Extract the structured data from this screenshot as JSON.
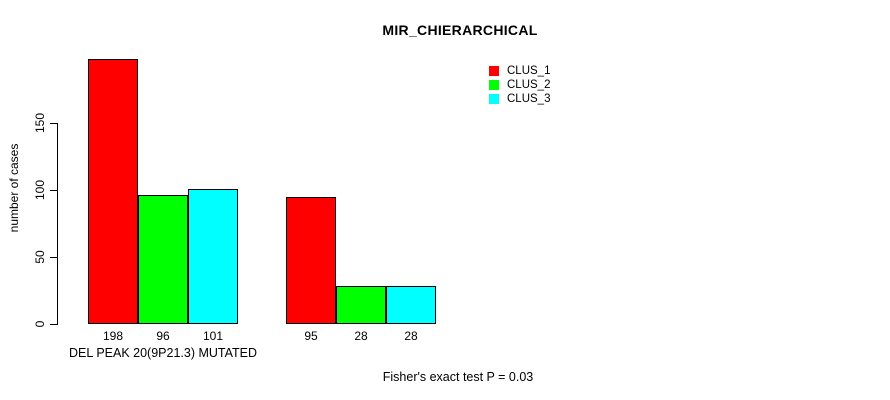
{
  "chart_data": {
    "type": "bar",
    "title": "MIR_CHIERARCHICAL",
    "ylabel": "number of cases",
    "xlabel": "DEL PEAK 20(9P21.3) MUTATED",
    "annotation": "Fisher's exact test P = 0.03",
    "yticks": [
      0,
      50,
      100,
      150
    ],
    "ylim": [
      0,
      210
    ],
    "grid": false,
    "legend_position": "top-right",
    "groups": [
      "DEL PEAK 20(9P21.3) MUTATED",
      "second group (unlabeled)"
    ],
    "series": [
      {
        "name": "CLUS_1",
        "color": "#ff0000",
        "values": [
          198,
          95
        ]
      },
      {
        "name": "CLUS_2",
        "color": "#00ff00",
        "values": [
          96,
          28
        ]
      },
      {
        "name": "CLUS_3",
        "color": "#00ffff",
        "values": [
          101,
          28
        ]
      }
    ],
    "bar_value_labels": [
      [
        198,
        96,
        101
      ],
      [
        95,
        28,
        28
      ]
    ]
  },
  "colors": {
    "background": "#ffffff",
    "axis": "#000000",
    "text": "#000000",
    "bar_border": "#000000"
  }
}
